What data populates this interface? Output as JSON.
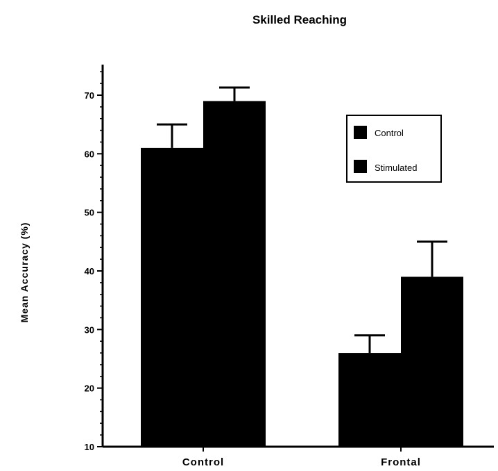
{
  "chart_data": {
    "type": "bar",
    "title": "Skilled Reaching",
    "ylabel": "Mean Accuracy (%)",
    "xlabel": "",
    "categories": [
      "Control",
      "Frontal"
    ],
    "series": [
      {
        "name": "Control",
        "values": [
          61,
          26
        ],
        "errors": [
          4,
          3
        ],
        "color": "#000000"
      },
      {
        "name": "Stimulated",
        "values": [
          69,
          39
        ],
        "errors": [
          2.3,
          6
        ],
        "color": "#000000"
      }
    ],
    "ylim": [
      10,
      75
    ],
    "yticks": [
      10,
      20,
      30,
      40,
      50,
      60,
      70
    ],
    "grid": false,
    "legend_position": "top-right"
  }
}
